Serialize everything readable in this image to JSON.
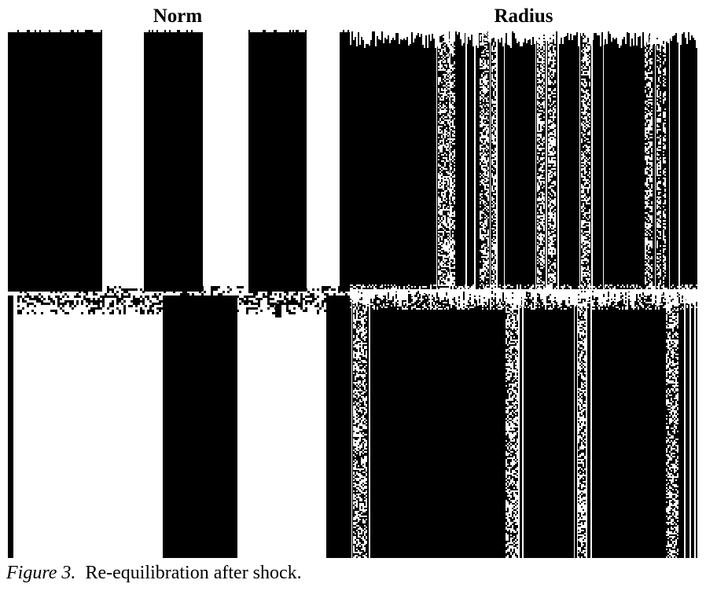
{
  "figure": {
    "panels": [
      {
        "key": "norm",
        "title": "Norm"
      },
      {
        "key": "radius",
        "title": "Radius"
      }
    ],
    "caption_label": "Figure 3.",
    "caption_text": "Re-equilibration after shock."
  },
  "colors": {
    "ink": "#000000",
    "paper": "#ffffff"
  }
}
